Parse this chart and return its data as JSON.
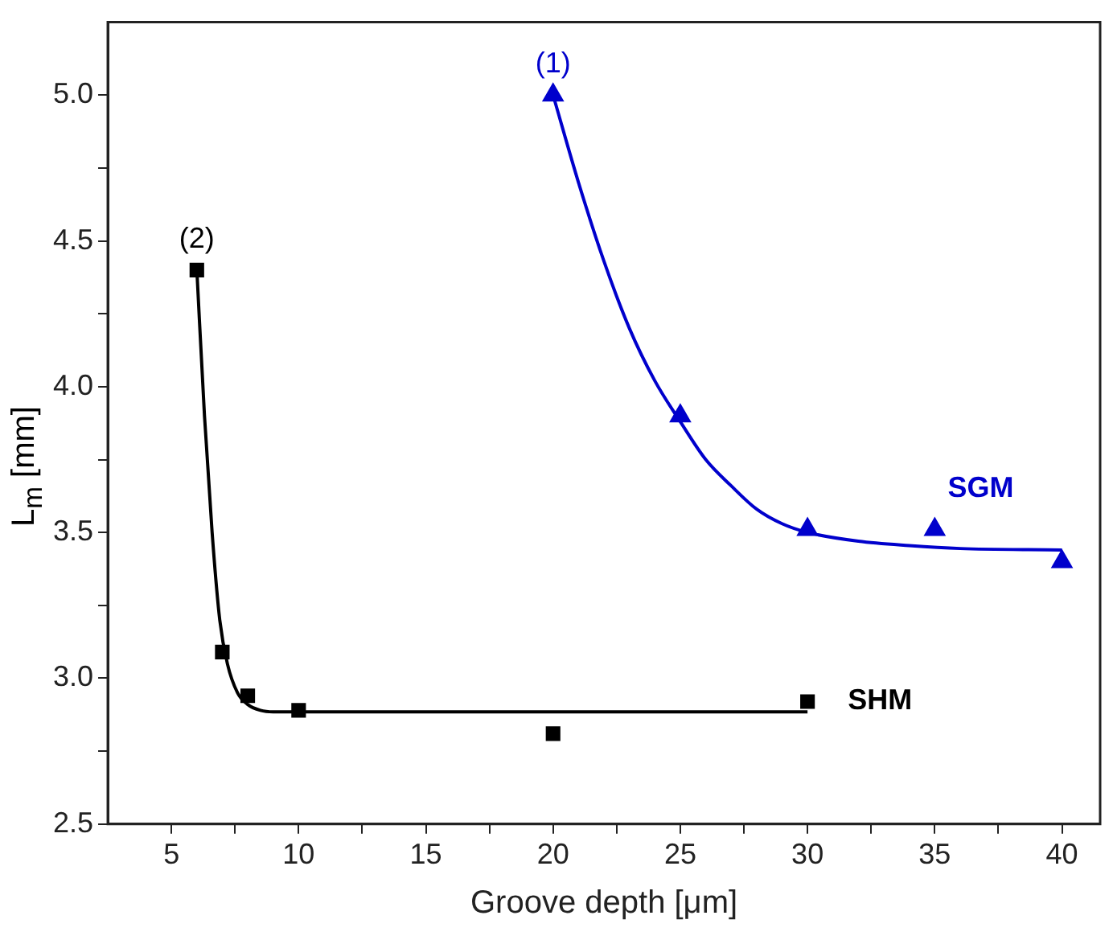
{
  "chart_data": {
    "type": "scatter",
    "xlabel": "Groove depth [μm]",
    "ylabel": "L$_{m}$ [mm]",
    "xlim": [
      2.5,
      41.5
    ],
    "ylim": [
      2.5,
      5.25
    ],
    "xticks": [
      5,
      {
        "value": 7.5,
        "label": null
      },
      10,
      {
        "value": 12.5,
        "label": null
      },
      15,
      {
        "value": 17.5,
        "label": null
      },
      20,
      {
        "value": 22.5,
        "label": null
      },
      25,
      {
        "value": 27.5,
        "label": null
      },
      30,
      {
        "value": 32.5,
        "label": null
      },
      35,
      {
        "value": 37.5,
        "label": null
      },
      40
    ],
    "yticks": [
      2.5,
      {
        "value": 2.75,
        "label": null
      },
      "3.0",
      {
        "value": 3.25,
        "label": null
      },
      3.5,
      {
        "value": 3.75,
        "label": null
      },
      "4.0",
      {
        "value": 4.25,
        "label": null
      },
      4.5,
      {
        "value": 4.75,
        "label": null
      },
      "5.0"
    ],
    "grid": false,
    "legend": false,
    "series": [
      {
        "name": "SHM",
        "type": "scatter",
        "marker": "square",
        "color": "#000000",
        "x": [
          6,
          7,
          8,
          10,
          20,
          30
        ],
        "values": [
          4.4,
          3.09,
          2.94,
          2.89,
          2.81,
          2.92
        ]
      },
      {
        "name": "SGM",
        "type": "scatter",
        "marker": "triangle",
        "color": "#0000cc",
        "x": [
          20,
          25,
          30,
          35,
          40
        ],
        "values": [
          5.0,
          3.9,
          3.51,
          3.51,
          3.4
        ]
      },
      {
        "type": "line",
        "marker": "none",
        "color": "#000000",
        "x": [
          6,
          6.3,
          6.6,
          6.9,
          7.2,
          7.6,
          8,
          8.5,
          9,
          10,
          30
        ],
        "values": [
          4.4,
          3.9,
          3.5,
          3.2,
          3.05,
          2.95,
          2.91,
          2.89,
          2.885,
          2.885,
          2.885
        ]
      },
      {
        "type": "line",
        "marker": "none",
        "color": "#0000cc",
        "x": [
          20,
          21,
          22,
          23,
          24,
          25,
          26,
          27,
          28,
          29,
          30,
          32,
          34,
          36,
          40
        ],
        "values": [
          5.0,
          4.7,
          4.43,
          4.2,
          4.02,
          3.88,
          3.75,
          3.66,
          3.58,
          3.53,
          3.5,
          3.47,
          3.455,
          3.445,
          3.44
        ]
      }
    ],
    "annotations": [
      {
        "text": "(1)",
        "x": 20,
        "y": 5.0
      },
      {
        "text": "(2)",
        "x": 6,
        "y": 4.4
      }
    ]
  }
}
